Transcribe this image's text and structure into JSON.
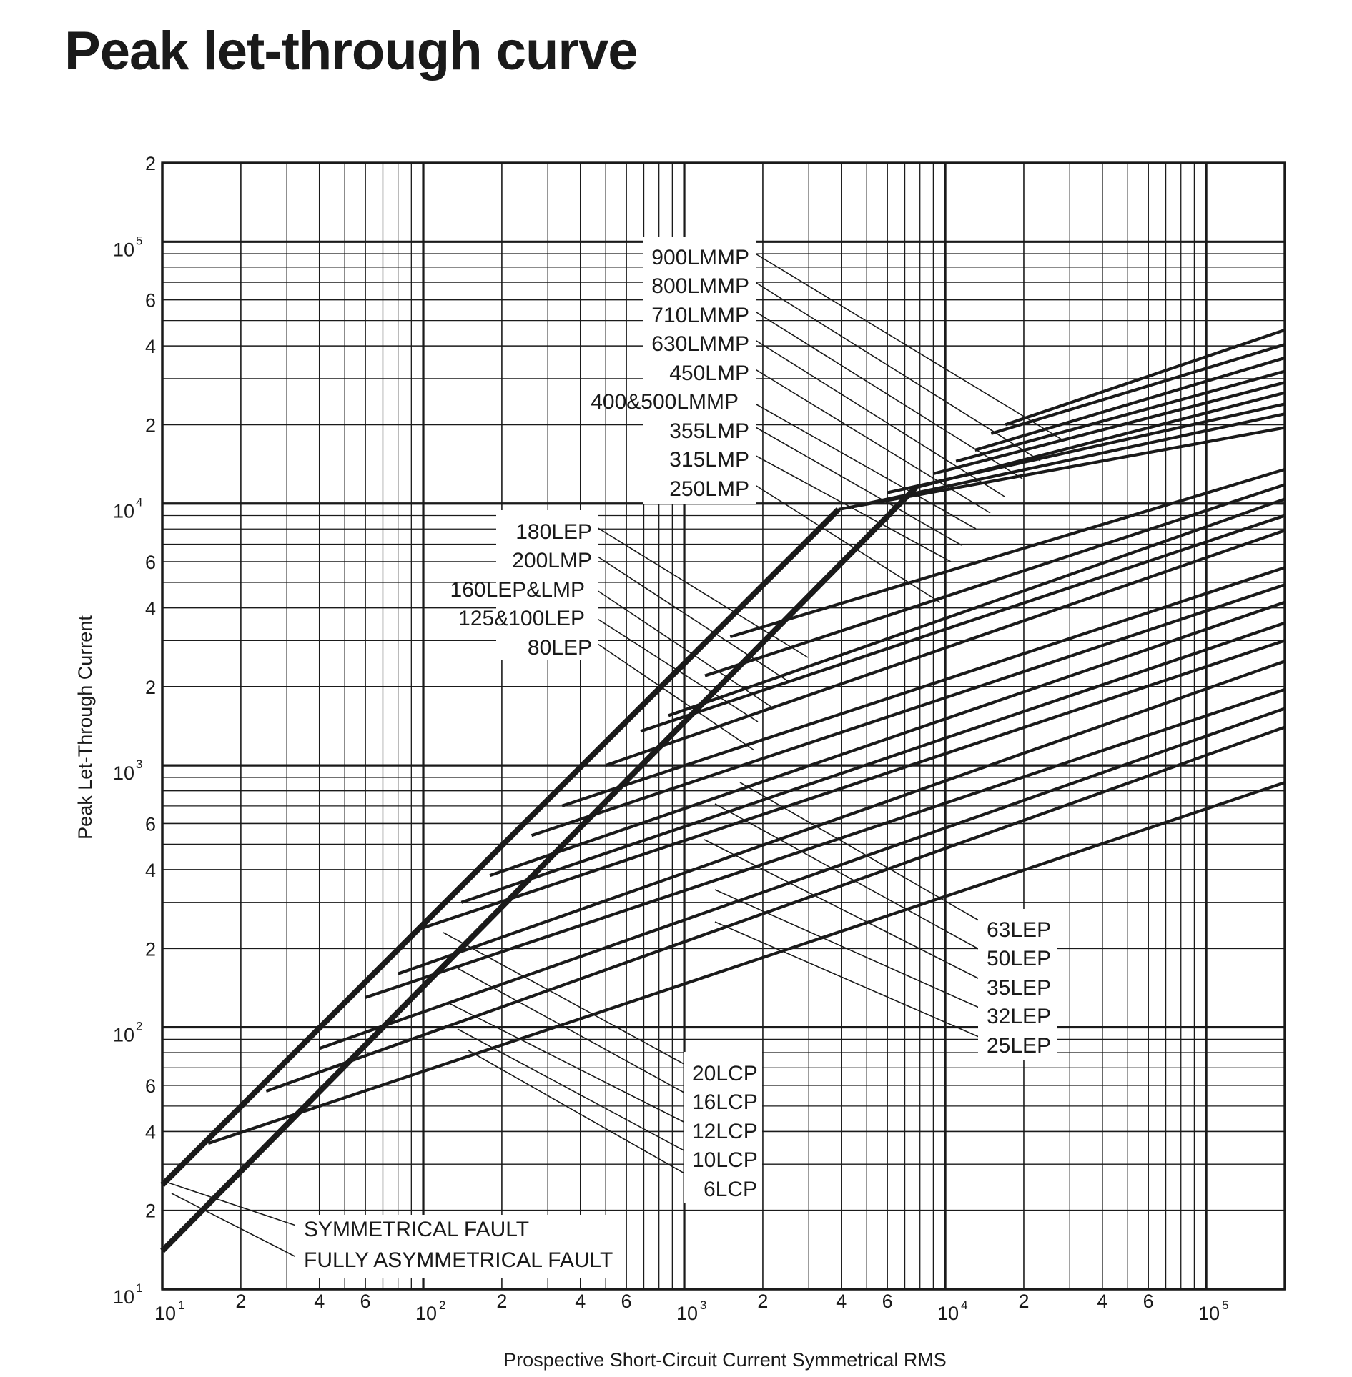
{
  "title": "Peak let-through curve",
  "colors": {
    "ink": "#1a1a1a",
    "background": "#ffffff"
  },
  "chart_data": {
    "type": "line",
    "xlabel": "Prospective Short-Circuit Current Symmetrical RMS",
    "ylabel": "Peak Let-Through Current",
    "x_scale": "log",
    "y_scale": "log",
    "xlim": [
      10,
      200000
    ],
    "ylim": [
      10,
      200000
    ],
    "grid": true,
    "x_ticks": [
      {
        "value": 10,
        "base": "10",
        "exp": "1"
      },
      {
        "value": 20,
        "label": "2"
      },
      {
        "value": 40,
        "label": "4"
      },
      {
        "value": 60,
        "label": "6"
      },
      {
        "value": 100,
        "base": "10",
        "exp": "2"
      },
      {
        "value": 200,
        "label": "2"
      },
      {
        "value": 400,
        "label": "4"
      },
      {
        "value": 600,
        "label": "6"
      },
      {
        "value": 1000,
        "base": "10",
        "exp": "3"
      },
      {
        "value": 2000,
        "label": "2"
      },
      {
        "value": 4000,
        "label": "4"
      },
      {
        "value": 6000,
        "label": "6"
      },
      {
        "value": 10000,
        "base": "10",
        "exp": "4"
      },
      {
        "value": 20000,
        "label": "2"
      },
      {
        "value": 40000,
        "label": "4"
      },
      {
        "value": 60000,
        "label": "6"
      },
      {
        "value": 100000,
        "base": "10",
        "exp": "5"
      }
    ],
    "y_ticks": [
      {
        "value": 10,
        "base": "10",
        "exp": "1"
      },
      {
        "value": 20,
        "label": "2"
      },
      {
        "value": 40,
        "label": "4"
      },
      {
        "value": 60,
        "label": "6"
      },
      {
        "value": 100,
        "base": "10",
        "exp": "2"
      },
      {
        "value": 200,
        "label": "2"
      },
      {
        "value": 400,
        "label": "4"
      },
      {
        "value": 600,
        "label": "6"
      },
      {
        "value": 1000,
        "base": "10",
        "exp": "3"
      },
      {
        "value": 2000,
        "label": "2"
      },
      {
        "value": 4000,
        "label": "4"
      },
      {
        "value": 6000,
        "label": "6"
      },
      {
        "value": 10000,
        "base": "10",
        "exp": "4"
      },
      {
        "value": 20000,
        "label": "2"
      },
      {
        "value": 40000,
        "label": "4"
      },
      {
        "value": 60000,
        "label": "6"
      },
      {
        "value": 100000,
        "base": "10",
        "exp": "5"
      },
      {
        "value": 200000,
        "label": "2"
      }
    ],
    "limit_lines": [
      {
        "name": "SYMMETRICAL FAULT",
        "points": [
          [
            10,
            25
          ],
          [
            3900,
            9500
          ]
        ]
      },
      {
        "name": "FULLY ASYMMETRICAL FAULT",
        "points": [
          [
            10,
            14
          ],
          [
            7700,
            11500
          ]
        ]
      }
    ],
    "series": [
      {
        "name": "6LCP",
        "points": [
          [
            15,
            36
          ],
          [
            200000,
            860
          ]
        ]
      },
      {
        "name": "10LCP",
        "points": [
          [
            25,
            57
          ],
          [
            200000,
            1400
          ]
        ]
      },
      {
        "name": "12LCP",
        "points": [
          [
            40,
            83
          ],
          [
            200000,
            1650
          ]
        ]
      },
      {
        "name": "16LCP",
        "points": [
          [
            60,
            130
          ],
          [
            200000,
            1950
          ]
        ]
      },
      {
        "name": "20LCP",
        "points": [
          [
            80,
            160
          ],
          [
            200000,
            2500
          ]
        ]
      },
      {
        "name": "25LEP",
        "points": [
          [
            100,
            240
          ],
          [
            200000,
            3000
          ]
        ]
      },
      {
        "name": "32LEP",
        "points": [
          [
            140,
            300
          ],
          [
            200000,
            3500
          ]
        ]
      },
      {
        "name": "35LEP",
        "points": [
          [
            180,
            380
          ],
          [
            200000,
            4200
          ]
        ]
      },
      {
        "name": "50LEP",
        "points": [
          [
            260,
            540
          ],
          [
            200000,
            4900
          ]
        ]
      },
      {
        "name": "63LEP",
        "points": [
          [
            340,
            700
          ],
          [
            200000,
            5700
          ]
        ]
      },
      {
        "name": "80LEP",
        "points": [
          [
            500,
            1000
          ],
          [
            200000,
            7900
          ]
        ]
      },
      {
        "name": "125&100LEP",
        "points": [
          [
            680,
            1350
          ],
          [
            200000,
            9000
          ]
        ]
      },
      {
        "name": "160LEP&LMP",
        "points": [
          [
            870,
            1550
          ],
          [
            200000,
            10400
          ]
        ]
      },
      {
        "name": "200LMP",
        "points": [
          [
            1200,
            2200
          ],
          [
            200000,
            11800
          ]
        ]
      },
      {
        "name": "180LEP",
        "points": [
          [
            1500,
            3100
          ],
          [
            200000,
            13500
          ]
        ]
      },
      {
        "name": "250LMP",
        "points": [
          [
            3900,
            9500
          ],
          [
            200000,
            19500
          ]
        ]
      },
      {
        "name": "315LMP",
        "points": [
          [
            5000,
            10000
          ],
          [
            200000,
            22000
          ]
        ]
      },
      {
        "name": "355LMP",
        "points": [
          [
            6000,
            11000
          ],
          [
            200000,
            24000
          ]
        ]
      },
      {
        "name": "400&500LMMP",
        "points": [
          [
            7700,
            11500
          ],
          [
            200000,
            26500
          ]
        ]
      },
      {
        "name": "450LMP",
        "points": [
          [
            9000,
            13000
          ],
          [
            200000,
            29000
          ]
        ]
      },
      {
        "name": "630LMMP",
        "points": [
          [
            11000,
            14500
          ],
          [
            200000,
            32000
          ]
        ]
      },
      {
        "name": "710LMMP",
        "points": [
          [
            13000,
            16000
          ],
          [
            200000,
            36000
          ]
        ]
      },
      {
        "name": "800LMMP",
        "points": [
          [
            15000,
            18500
          ],
          [
            200000,
            40500
          ]
        ]
      },
      {
        "name": "900LMMP",
        "points": [
          [
            17000,
            20000
          ],
          [
            200000,
            46000
          ]
        ]
      }
    ]
  }
}
